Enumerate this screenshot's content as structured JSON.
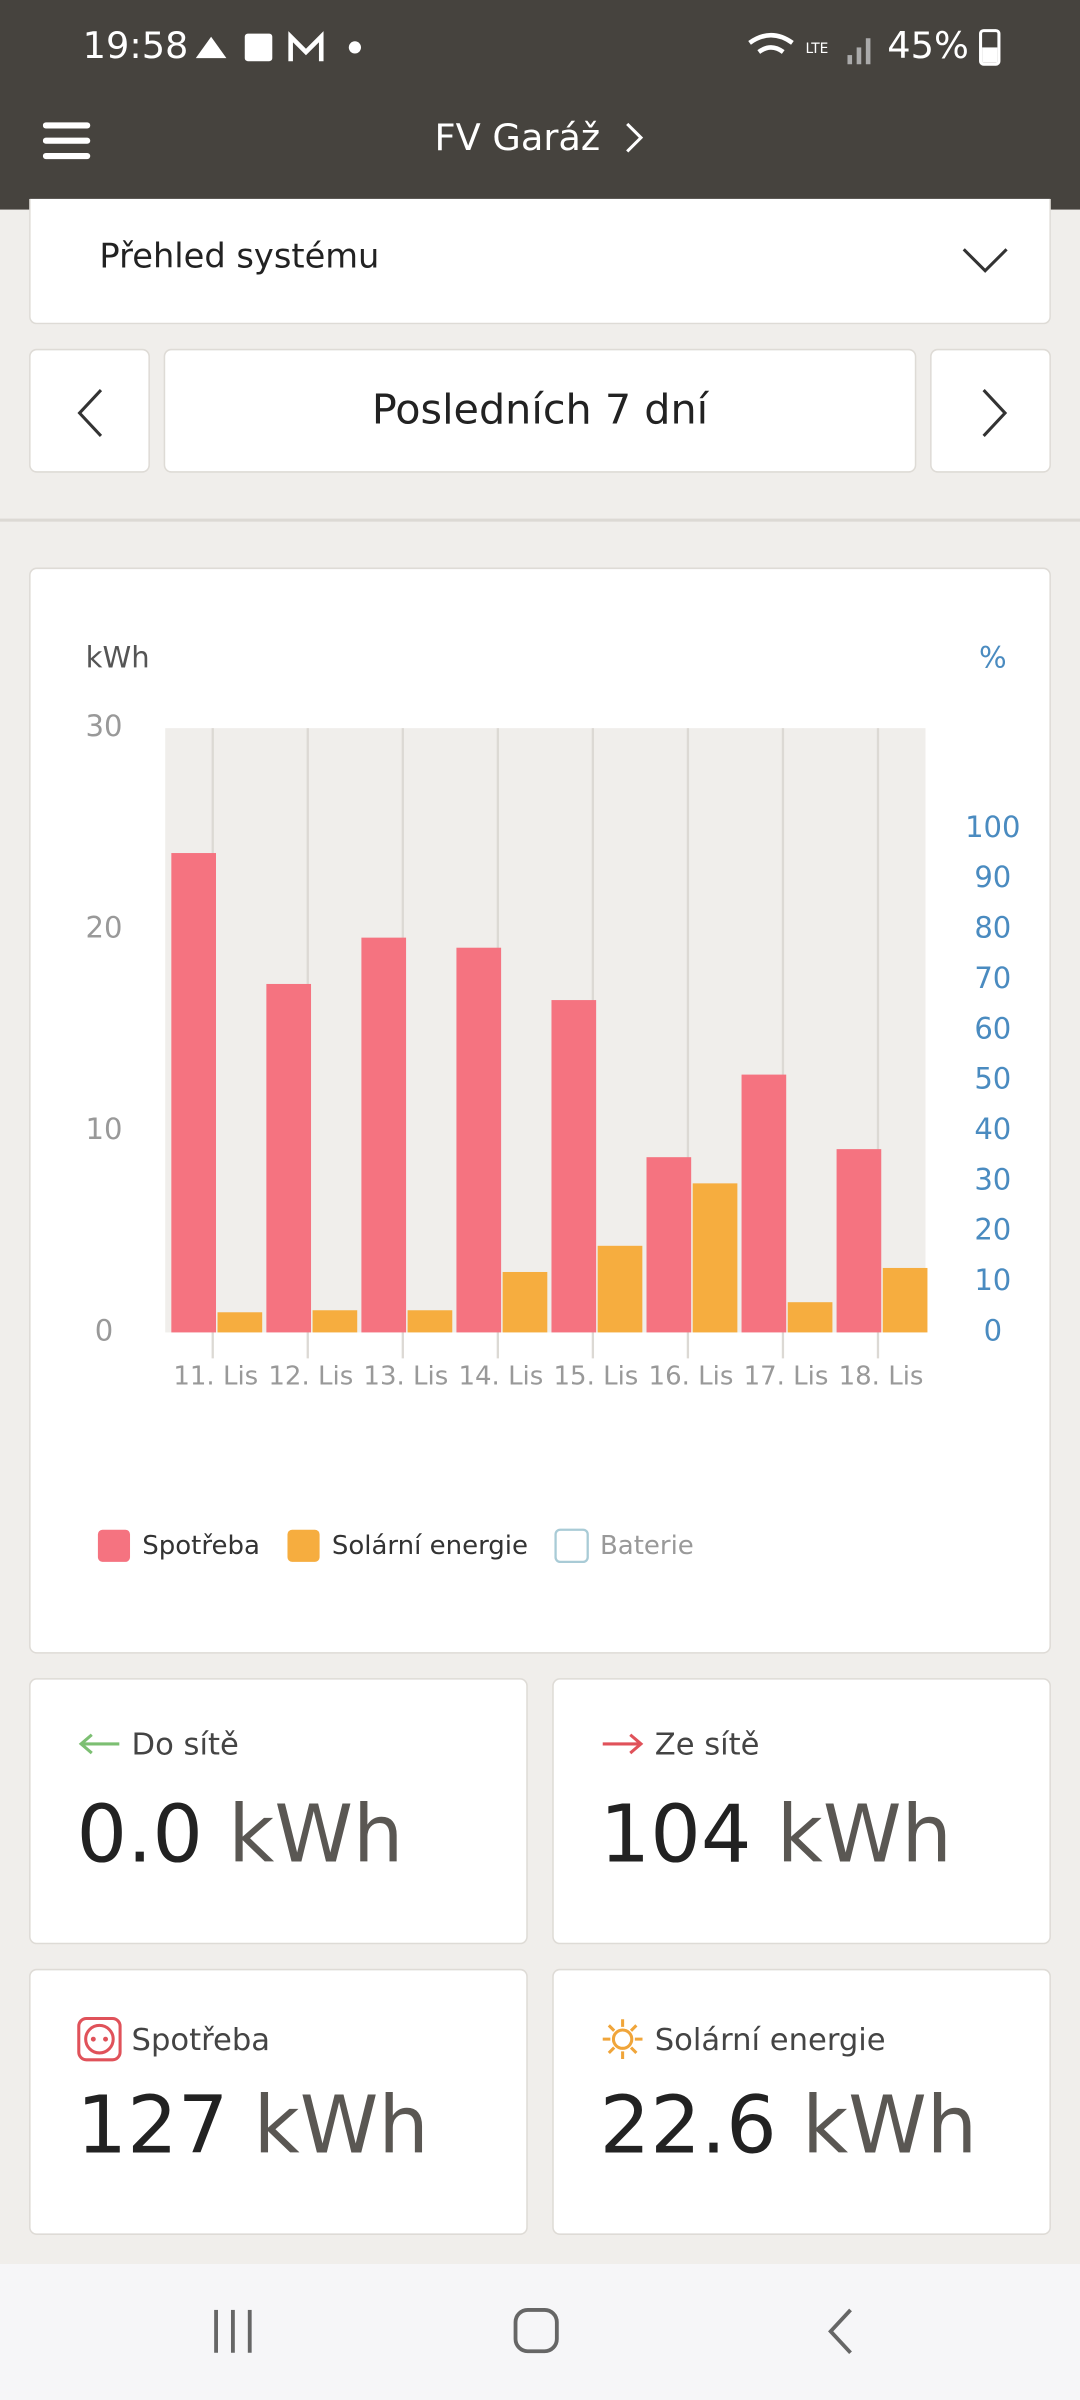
{
  "status_bar": {
    "time": "19:58",
    "battery": "45%"
  },
  "header": {
    "title": "FV Garáž"
  },
  "dropdown": {
    "label": "Přehled systému"
  },
  "period": {
    "label": "Posledních 7 dní"
  },
  "chart_data": {
    "type": "bar",
    "y_label": "kWh",
    "y2_label": "%",
    "categories": [
      "11. Lis",
      "12. Lis",
      "13. Lis",
      "14. Lis",
      "15. Lis",
      "16. Lis",
      "17. Lis",
      "18. Lis"
    ],
    "series": [
      {
        "name": "Spotřeba",
        "color": "#f57380",
        "values": [
          23.8,
          17.3,
          19.6,
          19.1,
          16.5,
          8.7,
          12.8,
          9.1
        ]
      },
      {
        "name": "Solární energie",
        "color": "#f6ad3f",
        "values": [
          1.0,
          1.1,
          1.1,
          3.0,
          4.3,
          7.4,
          1.5,
          3.2
        ]
      },
      {
        "name": "Baterie",
        "color": "#a9cbd6",
        "visible": false,
        "values": [
          null,
          null,
          null,
          null,
          null,
          null,
          null,
          null
        ]
      }
    ],
    "ylim": [
      0,
      30
    ],
    "yticks": [
      0,
      10,
      20,
      30
    ],
    "y2lim": [
      0,
      120
    ],
    "y2ticks": [
      0,
      10,
      20,
      30,
      40,
      50,
      60,
      70,
      80,
      90,
      100
    ],
    "legend": "bottom-left"
  },
  "stats": [
    {
      "label": "Do sítě",
      "value": "0.0",
      "unit": "kWh"
    },
    {
      "label": "Ze sítě",
      "value": "104",
      "unit": "kWh"
    },
    {
      "label": "Spotřeba",
      "value": "127",
      "unit": "kWh"
    },
    {
      "label": "Solární energie",
      "value": "22.6",
      "unit": "kWh"
    }
  ]
}
